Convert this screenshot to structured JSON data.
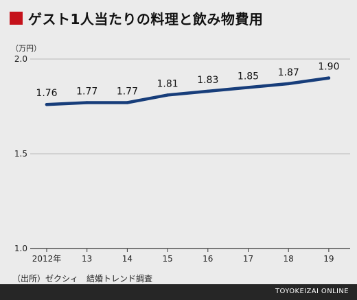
{
  "title": "ゲスト1人当たりの料理と飲み物費用",
  "accent_color": "#c5121b",
  "line_color": "#173d7a",
  "source": "（出所）ゼクシィ　結婚トレンド調査",
  "brand": "TOYOKEIZAI ONLINE",
  "chart_data": {
    "type": "line",
    "title": "ゲスト1人当たりの料理と飲み物費用",
    "unit_label": "（万円）",
    "categories": [
      "2012年",
      "13",
      "14",
      "15",
      "16",
      "17",
      "18",
      "19"
    ],
    "series": [
      {
        "values": [
          1.76,
          1.77,
          1.77,
          1.81,
          1.83,
          1.85,
          1.87,
          1.9
        ]
      }
    ],
    "data_labels": [
      "1.76",
      "1.77",
      "1.77",
      "1.81",
      "1.83",
      "1.85",
      "1.87",
      "1.90"
    ],
    "ylim": [
      1.0,
      2.0
    ],
    "yticks": [
      1.0,
      1.5,
      2.0
    ],
    "ytick_labels": [
      "1.0",
      "1.5",
      "2.0"
    ],
    "grid": false
  }
}
